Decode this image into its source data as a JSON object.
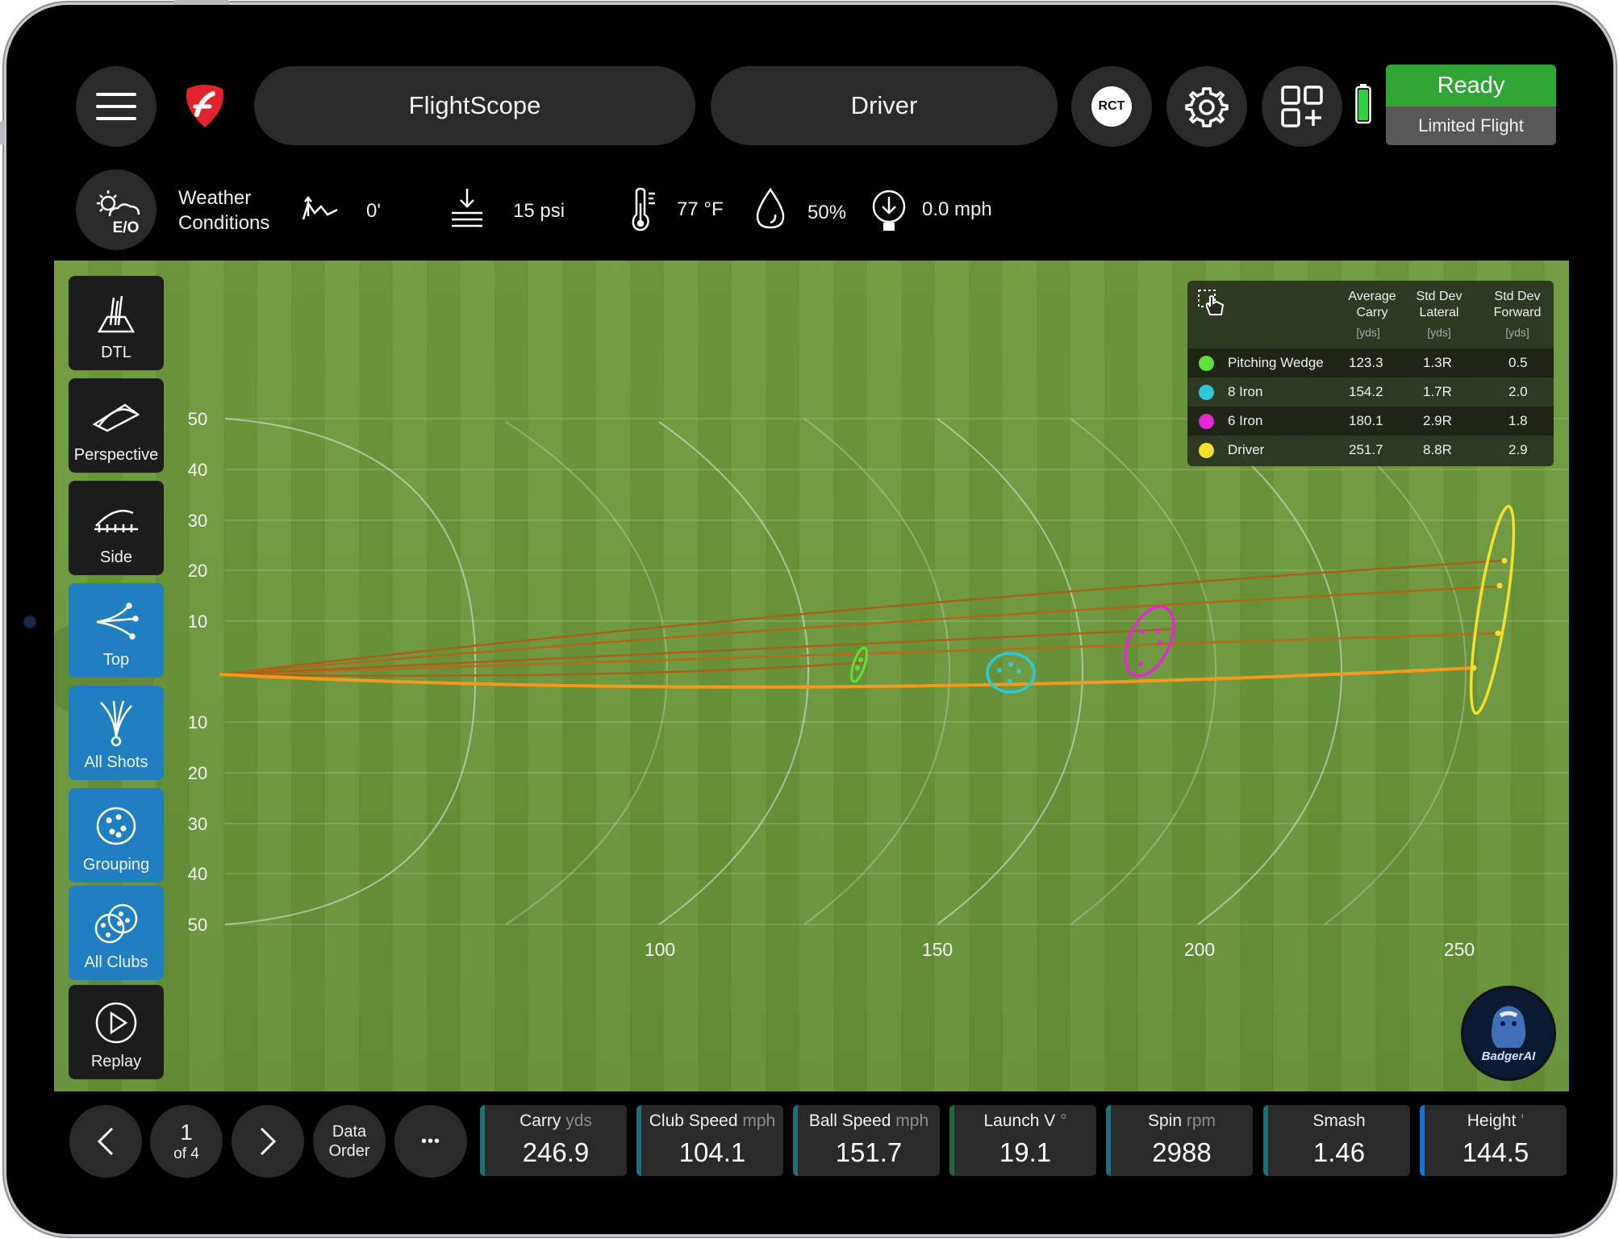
{
  "header": {
    "app_name": "FlightScope",
    "club": "Driver",
    "rct_label": "RCT",
    "status": "Ready",
    "status_mode": "Limited Flight"
  },
  "weather": {
    "mode_label": "E/O",
    "label": "Weather Conditions",
    "altitude": "0'",
    "pressure": "15 psi",
    "temperature": "77 °F",
    "humidity": "50%",
    "wind": "0.0 mph"
  },
  "views": {
    "dtl": "DTL",
    "perspective": "Perspective",
    "side": "Side",
    "top": "Top",
    "all_shots": "All Shots",
    "grouping": "Grouping",
    "all_clubs": "All Clubs",
    "replay": "Replay"
  },
  "chart": {
    "y_ticks": [
      "50",
      "40",
      "30",
      "20",
      "10",
      "10",
      "20",
      "30",
      "40",
      "50"
    ],
    "x_ticks": [
      "100",
      "150",
      "200",
      "250"
    ]
  },
  "legend": {
    "headers": [
      {
        "line1": "Average",
        "line2": "Carry",
        "unit": "[yds]"
      },
      {
        "line1": "Std Dev",
        "line2": "Lateral",
        "unit": "[yds]"
      },
      {
        "line1": "Std Dev",
        "line2": "Forward",
        "unit": "[yds]"
      }
    ],
    "rows": [
      {
        "club": "Pitching Wedge",
        "carry": "123.3",
        "lateral": "1.3R",
        "forward": "0.5",
        "color": "#5fe13a"
      },
      {
        "club": "8 Iron",
        "carry": "154.2",
        "lateral": "1.7R",
        "forward": "2.0",
        "color": "#2fc9d6"
      },
      {
        "club": "6 Iron",
        "carry": "180.1",
        "lateral": "2.9R",
        "forward": "1.8",
        "color": "#e627d8"
      },
      {
        "club": "Driver",
        "carry": "251.7",
        "lateral": "8.8R",
        "forward": "2.9",
        "color": "#f4e12b"
      }
    ]
  },
  "badge": "BadgerAI",
  "footer": {
    "page_num": "1",
    "page_of": "of 4",
    "data_order": "Data Order",
    "more": "•••",
    "metrics": [
      {
        "label": "Carry",
        "unit": "yds",
        "value": "246.9"
      },
      {
        "label": "Club Speed",
        "unit": "mph",
        "value": "104.1"
      },
      {
        "label": "Ball Speed",
        "unit": "mph",
        "value": "151.7"
      },
      {
        "label": "Launch V",
        "unit": "°",
        "value": "19.1"
      },
      {
        "label": "Spin",
        "unit": "rpm",
        "value": "2988"
      },
      {
        "label": "Smash",
        "unit": "",
        "value": "1.46"
      },
      {
        "label": "Height",
        "unit": "'",
        "value": "144.5"
      }
    ]
  }
}
